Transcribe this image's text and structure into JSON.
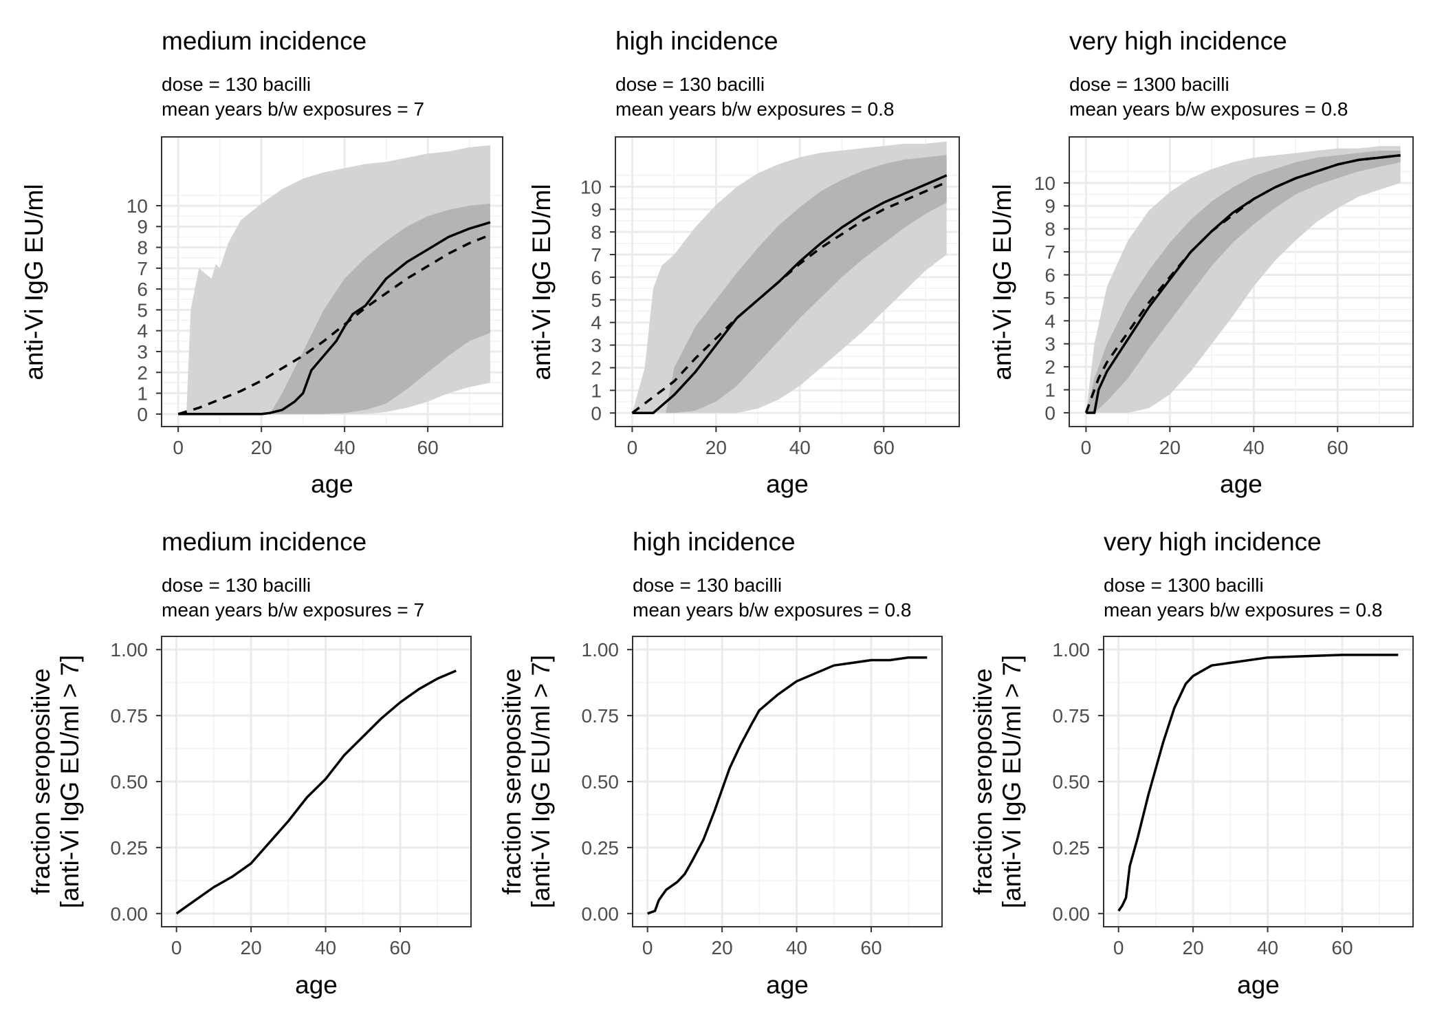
{
  "chart_data": [
    {
      "type": "area",
      "title": "medium incidence",
      "subtitle": [
        "dose = 130 bacilli",
        "mean years b/w exposures = 7"
      ],
      "xlabel": "age",
      "ylabel": [
        "anti-Vi IgG EU/ml"
      ],
      "xlim": [
        -4,
        78
      ],
      "ylim": [
        -0.6,
        13.3
      ],
      "xticks": [
        0,
        20,
        40,
        60
      ],
      "yticks": [
        0,
        1,
        2,
        3,
        4,
        5,
        6,
        7,
        8,
        9,
        10
      ],
      "grid": true,
      "series": [
        {
          "style": "band-outer",
          "x": [
            0,
            2,
            3,
            5,
            8,
            9,
            10,
            12,
            15,
            20,
            25,
            30,
            35,
            40,
            45,
            50,
            55,
            60,
            65,
            70,
            75
          ],
          "lower": [
            0,
            0,
            0,
            0,
            0,
            0,
            0,
            0,
            0,
            0,
            0,
            0,
            0,
            0,
            0,
            0.1,
            0.3,
            0.6,
            1.0,
            1.3,
            1.5
          ],
          "upper": [
            0,
            0.2,
            5.0,
            7.0,
            6.5,
            7.2,
            7.0,
            8.2,
            9.3,
            10.1,
            10.8,
            11.3,
            11.6,
            11.8,
            12.0,
            12.1,
            12.3,
            12.5,
            12.6,
            12.8,
            12.9
          ]
        },
        {
          "style": "band-inner",
          "x": [
            22,
            25,
            30,
            35,
            40,
            45,
            50,
            55,
            60,
            65,
            70,
            75
          ],
          "lower": [
            0,
            0,
            0,
            0,
            0.05,
            0.2,
            0.5,
            1.2,
            2.0,
            2.8,
            3.5,
            3.9
          ],
          "upper": [
            0,
            1.0,
            3.0,
            5.0,
            6.5,
            7.5,
            8.3,
            9.0,
            9.5,
            9.8,
            10.0,
            10.1
          ]
        },
        {
          "style": "solid",
          "name": "",
          "x": [
            0,
            10,
            20,
            22,
            25,
            28,
            30,
            32,
            35,
            38,
            40,
            42,
            45,
            50,
            55,
            60,
            65,
            70,
            75
          ],
          "values": [
            0,
            0,
            0,
            0.05,
            0.2,
            0.6,
            1.0,
            2.1,
            2.8,
            3.5,
            4.2,
            4.8,
            5.2,
            6.5,
            7.3,
            7.9,
            8.5,
            8.9,
            9.2
          ]
        },
        {
          "style": "dashed",
          "name": "",
          "x": [
            0,
            5,
            10,
            15,
            20,
            25,
            30,
            35,
            40,
            45,
            50,
            55,
            60,
            65,
            70,
            75
          ],
          "values": [
            0,
            0.3,
            0.7,
            1.1,
            1.6,
            2.2,
            2.8,
            3.5,
            4.3,
            5.1,
            5.8,
            6.5,
            7.1,
            7.7,
            8.2,
            8.6
          ]
        }
      ]
    },
    {
      "type": "area",
      "title": "high incidence",
      "subtitle": [
        "dose = 130 bacilli",
        "mean years b/w exposures = 0.8"
      ],
      "xlabel": "age",
      "ylabel": [
        "anti-Vi IgG EU/ml"
      ],
      "xlim": [
        -4,
        78
      ],
      "ylim": [
        -0.6,
        12.2
      ],
      "xticks": [
        0,
        20,
        40,
        60
      ],
      "yticks": [
        0,
        1,
        2,
        3,
        4,
        5,
        6,
        7,
        8,
        9,
        10
      ],
      "grid": true,
      "series": [
        {
          "style": "band-outer",
          "x": [
            0,
            3,
            5,
            7,
            10,
            15,
            20,
            25,
            30,
            35,
            40,
            45,
            50,
            55,
            60,
            65,
            70,
            75
          ],
          "lower": [
            0,
            0,
            0,
            0,
            0,
            0,
            0,
            0,
            0.2,
            0.6,
            1.2,
            2.0,
            2.8,
            3.6,
            4.5,
            5.4,
            6.3,
            7.0
          ],
          "upper": [
            0,
            2.0,
            5.5,
            6.5,
            7.0,
            8.2,
            9.2,
            10.0,
            10.6,
            11.0,
            11.3,
            11.5,
            11.6,
            11.7,
            11.8,
            11.9,
            11.9,
            12.0
          ]
        },
        {
          "style": "band-inner",
          "x": [
            8,
            10,
            15,
            20,
            25,
            30,
            35,
            40,
            45,
            50,
            55,
            60,
            65,
            70,
            75
          ],
          "lower": [
            0,
            0,
            0.1,
            0.5,
            1.2,
            2.2,
            3.2,
            4.2,
            5.1,
            6.0,
            6.8,
            7.5,
            8.2,
            8.8,
            9.3
          ],
          "upper": [
            0,
            2.0,
            3.8,
            5.0,
            6.2,
            7.3,
            8.3,
            9.1,
            9.8,
            10.3,
            10.7,
            11.0,
            11.2,
            11.3,
            11.4
          ]
        },
        {
          "style": "solid",
          "name": "",
          "x": [
            0,
            5,
            10,
            15,
            20,
            25,
            30,
            35,
            40,
            45,
            50,
            55,
            60,
            65,
            70,
            75
          ],
          "values": [
            0,
            0,
            0.8,
            1.8,
            3.0,
            4.2,
            5.0,
            5.8,
            6.7,
            7.5,
            8.2,
            8.8,
            9.3,
            9.7,
            10.1,
            10.5
          ]
        },
        {
          "style": "dashed",
          "name": "",
          "x": [
            0,
            5,
            10,
            15,
            20,
            25,
            30,
            35,
            40,
            45,
            50,
            55,
            60,
            65,
            70,
            75
          ],
          "values": [
            0,
            0.7,
            1.4,
            2.4,
            3.3,
            4.2,
            5.0,
            5.8,
            6.6,
            7.3,
            7.9,
            8.5,
            9.0,
            9.4,
            9.8,
            10.2
          ]
        }
      ]
    },
    {
      "type": "area",
      "title": "very high incidence",
      "subtitle": [
        "dose = 1300 bacilli",
        "mean years b/w exposures = 0.8"
      ],
      "xlabel": "age",
      "ylabel": [
        "anti-Vi IgG EU/ml"
      ],
      "xlim": [
        -4,
        78
      ],
      "ylim": [
        -0.6,
        12.0
      ],
      "xticks": [
        0,
        20,
        40,
        60
      ],
      "yticks": [
        0,
        1,
        2,
        3,
        4,
        5,
        6,
        7,
        8,
        9,
        10
      ],
      "grid": true,
      "series": [
        {
          "style": "band-outer",
          "x": [
            0,
            2,
            5,
            10,
            15,
            20,
            25,
            30,
            35,
            40,
            45,
            50,
            55,
            60,
            65,
            70,
            75
          ],
          "lower": [
            0,
            0,
            0,
            0,
            0.2,
            0.8,
            1.8,
            3.0,
            4.2,
            5.5,
            6.6,
            7.5,
            8.3,
            8.9,
            9.4,
            9.7,
            10.0
          ],
          "upper": [
            0,
            3.0,
            5.5,
            7.5,
            8.8,
            9.6,
            10.2,
            10.6,
            10.9,
            11.1,
            11.2,
            11.3,
            11.4,
            11.5,
            11.5,
            11.6,
            11.6
          ]
        },
        {
          "style": "band-inner",
          "x": [
            0,
            2,
            5,
            10,
            15,
            20,
            25,
            30,
            35,
            40,
            45,
            50,
            55,
            60,
            65,
            70,
            75
          ],
          "lower": [
            0,
            0,
            0.5,
            1.5,
            2.8,
            4.0,
            5.2,
            6.4,
            7.4,
            8.2,
            8.9,
            9.5,
            9.9,
            10.2,
            10.5,
            10.7,
            10.9
          ],
          "upper": [
            0,
            1.5,
            3.0,
            4.8,
            6.2,
            7.4,
            8.4,
            9.2,
            9.8,
            10.3,
            10.6,
            10.9,
            11.1,
            11.2,
            11.3,
            11.4,
            11.4
          ]
        },
        {
          "style": "solid",
          "name": "",
          "x": [
            0,
            1,
            2,
            3,
            5,
            10,
            15,
            20,
            25,
            30,
            35,
            40,
            45,
            50,
            55,
            60,
            65,
            70,
            75
          ],
          "values": [
            0,
            0,
            0,
            1.0,
            1.8,
            3.2,
            4.6,
            5.8,
            7.0,
            7.9,
            8.7,
            9.3,
            9.8,
            10.2,
            10.5,
            10.8,
            11.0,
            11.1,
            11.2
          ]
        },
        {
          "style": "dashed",
          "name": "",
          "x": [
            0,
            1,
            2,
            3,
            5,
            10,
            15,
            20,
            25,
            30,
            35,
            40,
            45,
            50,
            55,
            60,
            65,
            70,
            75
          ],
          "values": [
            0,
            0.5,
            1.0,
            1.5,
            2.2,
            3.5,
            4.8,
            5.9,
            7.0,
            7.9,
            8.6,
            9.3,
            9.8,
            10.2,
            10.5,
            10.8,
            11.0,
            11.1,
            11.2
          ]
        }
      ]
    },
    {
      "type": "line",
      "title": "medium incidence",
      "subtitle": [
        "dose = 130 bacilli",
        "mean years b/w exposures = 7"
      ],
      "xlabel": "age",
      "ylabel": [
        "fraction seropositive",
        "[anti-Vi IgG EU/ml > 7]"
      ],
      "xlim": [
        -4,
        79
      ],
      "ylim": [
        -0.05,
        1.05
      ],
      "xticks": [
        0,
        20,
        40,
        60
      ],
      "yticks": [
        0,
        0.25,
        0.5,
        0.75,
        1
      ],
      "ytick_labels": [
        "0.00",
        "0.25",
        "0.50",
        "0.75",
        "1.00"
      ],
      "grid": true,
      "series": [
        {
          "style": "solid",
          "name": "",
          "x": [
            0,
            2,
            5,
            10,
            15,
            20,
            25,
            30,
            35,
            40,
            45,
            50,
            55,
            60,
            65,
            70,
            75
          ],
          "values": [
            0,
            0.02,
            0.05,
            0.1,
            0.14,
            0.19,
            0.27,
            0.35,
            0.44,
            0.51,
            0.6,
            0.67,
            0.74,
            0.8,
            0.85,
            0.89,
            0.92
          ]
        }
      ]
    },
    {
      "type": "line",
      "title": "high incidence",
      "subtitle": [
        "dose = 130 bacilli",
        "mean years b/w exposures = 0.8"
      ],
      "xlabel": "age",
      "ylabel": [
        "fraction seropositive",
        "[anti-Vi IgG EU/ml > 7]"
      ],
      "xlim": [
        -4,
        79
      ],
      "ylim": [
        -0.05,
        1.05
      ],
      "xticks": [
        0,
        20,
        40,
        60
      ],
      "yticks": [
        0,
        0.25,
        0.5,
        0.75,
        1
      ],
      "ytick_labels": [
        "0.00",
        "0.25",
        "0.50",
        "0.75",
        "1.00"
      ],
      "grid": true,
      "series": [
        {
          "style": "solid",
          "name": "",
          "x": [
            0,
            2,
            3,
            5,
            8,
            10,
            12,
            15,
            18,
            20,
            22,
            25,
            28,
            30,
            35,
            40,
            45,
            50,
            55,
            60,
            65,
            70,
            75
          ],
          "values": [
            0,
            0.01,
            0.05,
            0.09,
            0.12,
            0.15,
            0.2,
            0.28,
            0.39,
            0.47,
            0.55,
            0.64,
            0.72,
            0.77,
            0.83,
            0.88,
            0.91,
            0.94,
            0.95,
            0.96,
            0.96,
            0.97,
            0.97
          ]
        }
      ]
    },
    {
      "type": "line",
      "title": "very high incidence",
      "subtitle": [
        "dose = 1300 bacilli",
        "mean years b/w exposures = 0.8"
      ],
      "xlabel": "age",
      "ylabel": [
        "fraction seropositive",
        "[anti-Vi IgG EU/ml > 7]"
      ],
      "xlim": [
        -4,
        79
      ],
      "ylim": [
        -0.05,
        1.05
      ],
      "xticks": [
        0,
        20,
        40,
        60
      ],
      "yticks": [
        0,
        0.25,
        0.5,
        0.75,
        1
      ],
      "ytick_labels": [
        "0.00",
        "0.25",
        "0.50",
        "0.75",
        "1.00"
      ],
      "grid": true,
      "series": [
        {
          "style": "solid",
          "name": "",
          "x": [
            0,
            1,
            2,
            3,
            5,
            8,
            10,
            12,
            15,
            18,
            20,
            25,
            30,
            40,
            50,
            60,
            70,
            75
          ],
          "values": [
            0.01,
            0.03,
            0.06,
            0.18,
            0.28,
            0.45,
            0.55,
            0.65,
            0.78,
            0.87,
            0.9,
            0.94,
            0.95,
            0.97,
            0.975,
            0.98,
            0.98,
            0.98
          ]
        }
      ]
    }
  ]
}
